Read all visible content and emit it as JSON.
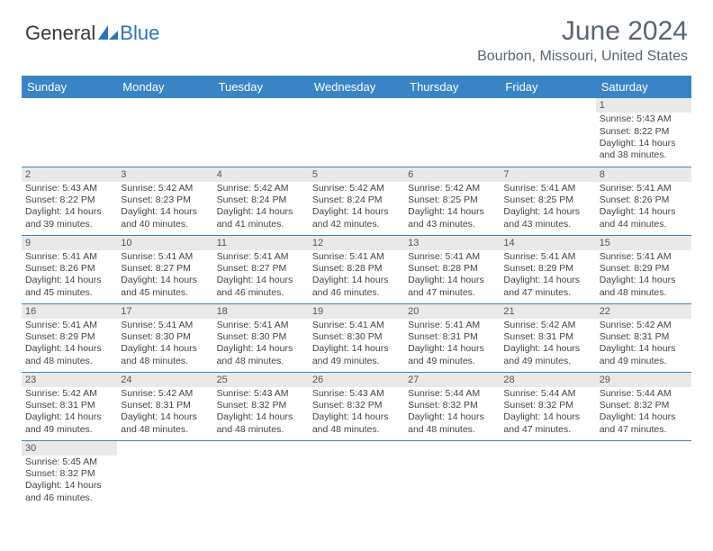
{
  "logo": {
    "text_a": "General",
    "text_b": "Blue",
    "accent_color": "#2b74b8"
  },
  "title": "June 2024",
  "location": "Bourbon, Missouri, United States",
  "colors": {
    "header_bg": "#3a84c6",
    "header_text": "#ffffff",
    "daynum_bg": "#e9e9e9",
    "cell_border": "#3a84c6",
    "text": "#444444",
    "title_text": "#5a6570"
  },
  "layout": {
    "columns": 7,
    "rows": 6,
    "first_day_column": 6
  },
  "weekdays": [
    "Sunday",
    "Monday",
    "Tuesday",
    "Wednesday",
    "Thursday",
    "Friday",
    "Saturday"
  ],
  "days": [
    {
      "n": 1,
      "sunrise": "5:43 AM",
      "sunset": "8:22 PM",
      "daylight": "14 hours and 38 minutes."
    },
    {
      "n": 2,
      "sunrise": "5:43 AM",
      "sunset": "8:22 PM",
      "daylight": "14 hours and 39 minutes."
    },
    {
      "n": 3,
      "sunrise": "5:42 AM",
      "sunset": "8:23 PM",
      "daylight": "14 hours and 40 minutes."
    },
    {
      "n": 4,
      "sunrise": "5:42 AM",
      "sunset": "8:24 PM",
      "daylight": "14 hours and 41 minutes."
    },
    {
      "n": 5,
      "sunrise": "5:42 AM",
      "sunset": "8:24 PM",
      "daylight": "14 hours and 42 minutes."
    },
    {
      "n": 6,
      "sunrise": "5:42 AM",
      "sunset": "8:25 PM",
      "daylight": "14 hours and 43 minutes."
    },
    {
      "n": 7,
      "sunrise": "5:41 AM",
      "sunset": "8:25 PM",
      "daylight": "14 hours and 43 minutes."
    },
    {
      "n": 8,
      "sunrise": "5:41 AM",
      "sunset": "8:26 PM",
      "daylight": "14 hours and 44 minutes."
    },
    {
      "n": 9,
      "sunrise": "5:41 AM",
      "sunset": "8:26 PM",
      "daylight": "14 hours and 45 minutes."
    },
    {
      "n": 10,
      "sunrise": "5:41 AM",
      "sunset": "8:27 PM",
      "daylight": "14 hours and 45 minutes."
    },
    {
      "n": 11,
      "sunrise": "5:41 AM",
      "sunset": "8:27 PM",
      "daylight": "14 hours and 46 minutes."
    },
    {
      "n": 12,
      "sunrise": "5:41 AM",
      "sunset": "8:28 PM",
      "daylight": "14 hours and 46 minutes."
    },
    {
      "n": 13,
      "sunrise": "5:41 AM",
      "sunset": "8:28 PM",
      "daylight": "14 hours and 47 minutes."
    },
    {
      "n": 14,
      "sunrise": "5:41 AM",
      "sunset": "8:29 PM",
      "daylight": "14 hours and 47 minutes."
    },
    {
      "n": 15,
      "sunrise": "5:41 AM",
      "sunset": "8:29 PM",
      "daylight": "14 hours and 48 minutes."
    },
    {
      "n": 16,
      "sunrise": "5:41 AM",
      "sunset": "8:29 PM",
      "daylight": "14 hours and 48 minutes."
    },
    {
      "n": 17,
      "sunrise": "5:41 AM",
      "sunset": "8:30 PM",
      "daylight": "14 hours and 48 minutes."
    },
    {
      "n": 18,
      "sunrise": "5:41 AM",
      "sunset": "8:30 PM",
      "daylight": "14 hours and 48 minutes."
    },
    {
      "n": 19,
      "sunrise": "5:41 AM",
      "sunset": "8:30 PM",
      "daylight": "14 hours and 49 minutes."
    },
    {
      "n": 20,
      "sunrise": "5:41 AM",
      "sunset": "8:31 PM",
      "daylight": "14 hours and 49 minutes."
    },
    {
      "n": 21,
      "sunrise": "5:42 AM",
      "sunset": "8:31 PM",
      "daylight": "14 hours and 49 minutes."
    },
    {
      "n": 22,
      "sunrise": "5:42 AM",
      "sunset": "8:31 PM",
      "daylight": "14 hours and 49 minutes."
    },
    {
      "n": 23,
      "sunrise": "5:42 AM",
      "sunset": "8:31 PM",
      "daylight": "14 hours and 49 minutes."
    },
    {
      "n": 24,
      "sunrise": "5:42 AM",
      "sunset": "8:31 PM",
      "daylight": "14 hours and 48 minutes."
    },
    {
      "n": 25,
      "sunrise": "5:43 AM",
      "sunset": "8:32 PM",
      "daylight": "14 hours and 48 minutes."
    },
    {
      "n": 26,
      "sunrise": "5:43 AM",
      "sunset": "8:32 PM",
      "daylight": "14 hours and 48 minutes."
    },
    {
      "n": 27,
      "sunrise": "5:44 AM",
      "sunset": "8:32 PM",
      "daylight": "14 hours and 48 minutes."
    },
    {
      "n": 28,
      "sunrise": "5:44 AM",
      "sunset": "8:32 PM",
      "daylight": "14 hours and 47 minutes."
    },
    {
      "n": 29,
      "sunrise": "5:44 AM",
      "sunset": "8:32 PM",
      "daylight": "14 hours and 47 minutes."
    },
    {
      "n": 30,
      "sunrise": "5:45 AM",
      "sunset": "8:32 PM",
      "daylight": "14 hours and 46 minutes."
    }
  ],
  "labels": {
    "sunrise": "Sunrise:",
    "sunset": "Sunset:",
    "daylight": "Daylight:"
  }
}
